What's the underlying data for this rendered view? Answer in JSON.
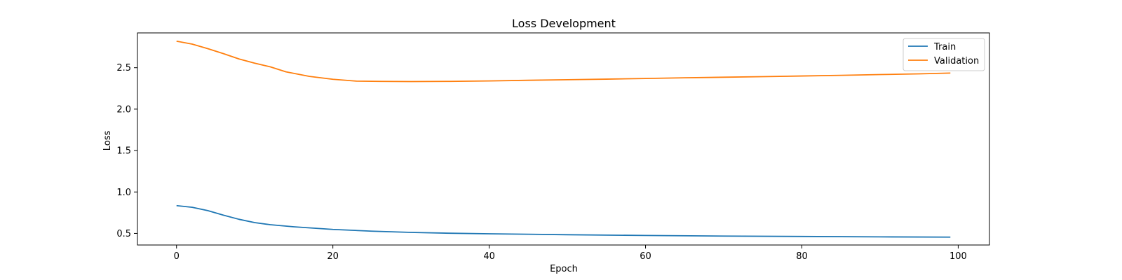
{
  "chart_data": {
    "type": "line",
    "title": "Loss Development",
    "xlabel": "Epoch",
    "ylabel": "Loss",
    "xlim": [
      -5,
      104
    ],
    "ylim": [
      0.36,
      2.92
    ],
    "xticks": [
      0,
      20,
      40,
      60,
      80,
      100
    ],
    "yticks": [
      0.5,
      1.0,
      1.5,
      2.0,
      2.5
    ],
    "grid": false,
    "legend_position": "top-right",
    "series": [
      {
        "name": "Train",
        "color": "#1f77b4",
        "x": [
          0,
          2,
          4,
          6,
          8,
          10,
          12,
          15,
          20,
          25,
          30,
          35,
          40,
          50,
          60,
          70,
          80,
          90,
          99
        ],
        "y": [
          0.835,
          0.815,
          0.775,
          0.72,
          0.67,
          0.63,
          0.605,
          0.58,
          0.548,
          0.527,
          0.512,
          0.502,
          0.495,
          0.484,
          0.475,
          0.468,
          0.463,
          0.458,
          0.455
        ]
      },
      {
        "name": "Validation",
        "color": "#ff7f0e",
        "x": [
          0,
          2,
          4,
          6,
          8,
          10,
          12,
          14,
          17,
          20,
          23,
          26,
          30,
          35,
          40,
          45,
          50,
          55,
          60,
          65,
          70,
          75,
          80,
          85,
          90,
          95,
          99
        ],
        "y": [
          2.82,
          2.785,
          2.73,
          2.67,
          2.605,
          2.555,
          2.51,
          2.45,
          2.395,
          2.36,
          2.338,
          2.335,
          2.333,
          2.335,
          2.34,
          2.348,
          2.355,
          2.362,
          2.37,
          2.378,
          2.385,
          2.392,
          2.4,
          2.408,
          2.417,
          2.426,
          2.435
        ]
      }
    ]
  }
}
